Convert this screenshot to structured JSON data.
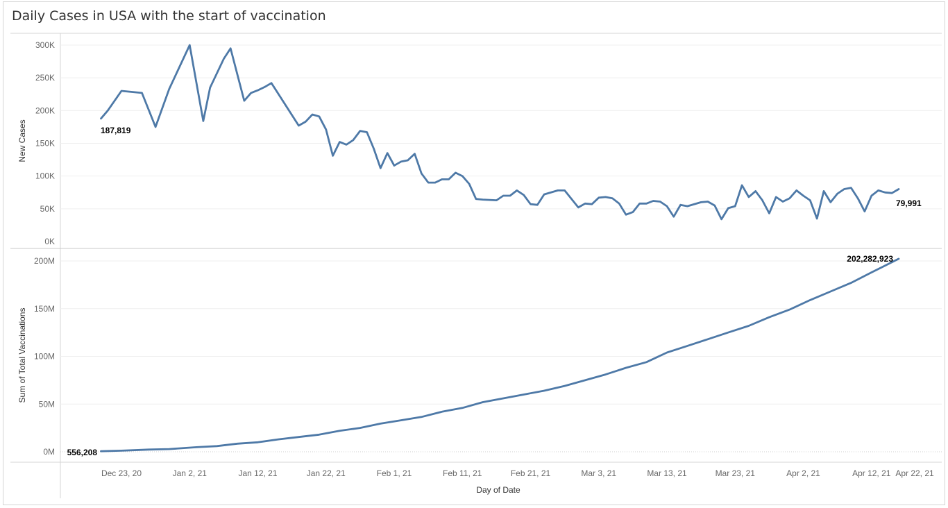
{
  "title": "Daily Cases in USA with the start of vaccination",
  "colors": {
    "line": "#4e79a7",
    "grid": "#efefef",
    "axis": "#d4d4d4"
  },
  "chart_data": [
    {
      "type": "line",
      "ylabel": "New Cases",
      "ylim": [
        0,
        320000
      ],
      "yticks": [
        {
          "v": 300000,
          "label": "300K"
        },
        {
          "v": 250000,
          "label": "250K"
        },
        {
          "v": 200000,
          "label": "200K"
        },
        {
          "v": 150000,
          "label": "150K"
        },
        {
          "v": 100000,
          "label": "100K"
        },
        {
          "v": 50000,
          "label": "50K"
        },
        {
          "v": 0,
          "label": "0K"
        }
      ],
      "series": [
        {
          "x": [
            "2020-12-20",
            "2020-12-21",
            "2020-12-23",
            "2020-12-26",
            "2020-12-28",
            "2020-12-30",
            "2021-01-02",
            "2021-01-04",
            "2021-01-05",
            "2021-01-07",
            "2021-01-08",
            "2021-01-10",
            "2021-01-11",
            "2021-01-12",
            "2021-01-13",
            "2021-01-14",
            "2021-01-18",
            "2021-01-19",
            "2021-01-20",
            "2021-01-21",
            "2021-01-22",
            "2021-01-23",
            "2021-01-24",
            "2021-01-25",
            "2021-01-26",
            "2021-01-27",
            "2021-01-28",
            "2021-01-29",
            "2021-01-30",
            "2021-01-31",
            "2021-02-01",
            "2021-02-02",
            "2021-02-03",
            "2021-02-04",
            "2021-02-05",
            "2021-02-06",
            "2021-02-07",
            "2021-02-08",
            "2021-02-09",
            "2021-02-10",
            "2021-02-11",
            "2021-02-12",
            "2021-02-13",
            "2021-02-14",
            "2021-02-16",
            "2021-02-17",
            "2021-02-18",
            "2021-02-19",
            "2021-02-20",
            "2021-02-21",
            "2021-02-22",
            "2021-02-23",
            "2021-02-25",
            "2021-02-26",
            "2021-02-28",
            "2021-03-01",
            "2021-03-02",
            "2021-03-03",
            "2021-03-04",
            "2021-03-05",
            "2021-03-06",
            "2021-03-07",
            "2021-03-08",
            "2021-03-09",
            "2021-03-10",
            "2021-03-11",
            "2021-03-12",
            "2021-03-13",
            "2021-03-14",
            "2021-03-15",
            "2021-03-16",
            "2021-03-18",
            "2021-03-19",
            "2021-03-20",
            "2021-03-21",
            "2021-03-22",
            "2021-03-23",
            "2021-03-24",
            "2021-03-25",
            "2021-03-26",
            "2021-03-27",
            "2021-03-28",
            "2021-03-29",
            "2021-03-30",
            "2021-03-31",
            "2021-04-01",
            "2021-04-02",
            "2021-04-03",
            "2021-04-04",
            "2021-04-05",
            "2021-04-06",
            "2021-04-07",
            "2021-04-08",
            "2021-04-09",
            "2021-04-10",
            "2021-04-11",
            "2021-04-12",
            "2021-04-13",
            "2021-04-14",
            "2021-04-15",
            "2021-04-16"
          ],
          "y": [
            187819,
            200000,
            230000,
            227000,
            175000,
            233000,
            300000,
            184000,
            235000,
            279000,
            295000,
            215000,
            227000,
            231000,
            236000,
            242000,
            177000,
            183000,
            194000,
            191000,
            171000,
            131000,
            152000,
            148000,
            155000,
            169000,
            167000,
            142000,
            112000,
            135000,
            116000,
            122000,
            124000,
            134000,
            104000,
            90000,
            90000,
            95000,
            95000,
            105000,
            100000,
            88000,
            65000,
            64000,
            63000,
            70000,
            70000,
            78000,
            71000,
            57000,
            56000,
            72000,
            78000,
            78000,
            52000,
            58000,
            57000,
            67000,
            68000,
            66000,
            58000,
            41000,
            45000,
            58000,
            58000,
            62000,
            61000,
            54000,
            38000,
            56000,
            54000,
            60000,
            61000,
            55000,
            34000,
            51000,
            54000,
            86000,
            68000,
            77000,
            63000,
            43000,
            68000,
            61000,
            66000,
            78000,
            70000,
            63000,
            35000,
            77000,
            60000,
            73000,
            80000,
            82000,
            66000,
            46000,
            70000,
            78000,
            75000,
            74000,
            79991
          ]
        }
      ],
      "annotations": [
        {
          "x": "2020-12-20",
          "y": 187819,
          "text": "187,819"
        },
        {
          "x": "2021-04-16",
          "y": 79991,
          "text": "79,991"
        }
      ]
    },
    {
      "type": "line",
      "ylabel": "Sum of Total Vaccinations",
      "xlabel": "Day of Date",
      "ylim": [
        0,
        210000000
      ],
      "yticks": [
        {
          "v": 200000000,
          "label": "200M"
        },
        {
          "v": 150000000,
          "label": "150M"
        },
        {
          "v": 100000000,
          "label": "100M"
        },
        {
          "v": 50000000,
          "label": "50M"
        },
        {
          "v": 0,
          "label": "0M"
        }
      ],
      "xticks": [
        {
          "v": "2020-12-23",
          "label": "Dec 23, 20"
        },
        {
          "v": "2021-01-02",
          "label": "Jan 2, 21"
        },
        {
          "v": "2021-01-12",
          "label": "Jan 12, 21"
        },
        {
          "v": "2021-01-22",
          "label": "Jan 22, 21"
        },
        {
          "v": "2021-02-01",
          "label": "Feb 1, 21"
        },
        {
          "v": "2021-02-11",
          "label": "Feb 11, 21"
        },
        {
          "v": "2021-02-21",
          "label": "Feb 21, 21"
        },
        {
          "v": "2021-03-03",
          "label": "Mar 3, 21"
        },
        {
          "v": "2021-03-13",
          "label": "Mar 13, 21"
        },
        {
          "v": "2021-03-23",
          "label": "Mar 23, 21"
        },
        {
          "v": "2021-04-02",
          "label": "Apr 2, 21"
        },
        {
          "v": "2021-04-12",
          "label": "Apr 12, 21"
        },
        {
          "v": "2021-04-22",
          "label": "Apr 22, 21"
        }
      ],
      "series": [
        {
          "x": [
            "2020-12-20",
            "2020-12-23",
            "2020-12-27",
            "2020-12-30",
            "2021-01-03",
            "2021-01-06",
            "2021-01-09",
            "2021-01-12",
            "2021-01-15",
            "2021-01-18",
            "2021-01-21",
            "2021-01-24",
            "2021-01-27",
            "2021-01-30",
            "2021-02-02",
            "2021-02-05",
            "2021-02-08",
            "2021-02-11",
            "2021-02-14",
            "2021-02-17",
            "2021-02-20",
            "2021-02-23",
            "2021-02-26",
            "2021-03-01",
            "2021-03-04",
            "2021-03-07",
            "2021-03-10",
            "2021-03-13",
            "2021-03-16",
            "2021-03-19",
            "2021-03-22",
            "2021-03-25",
            "2021-03-28",
            "2021-03-31",
            "2021-04-03",
            "2021-04-06",
            "2021-04-09",
            "2021-04-12",
            "2021-04-16"
          ],
          "y": [
            556208,
            1200000,
            2300000,
            2800000,
            4800000,
            6000000,
            8500000,
            10000000,
            13000000,
            15500000,
            18000000,
            22000000,
            25000000,
            29500000,
            33000000,
            36500000,
            42000000,
            46000000,
            52000000,
            56000000,
            60000000,
            64000000,
            69000000,
            75000000,
            81000000,
            88000000,
            94000000,
            104000000,
            111000000,
            118000000,
            125000000,
            132000000,
            141000000,
            149000000,
            159000000,
            168000000,
            177000000,
            188000000,
            202282923
          ]
        }
      ],
      "annotations": [
        {
          "x": "2020-12-20",
          "y": 556208,
          "text": "556,208"
        },
        {
          "x": "2021-04-16",
          "y": 202282923,
          "text": "202,282,923"
        }
      ]
    }
  ]
}
